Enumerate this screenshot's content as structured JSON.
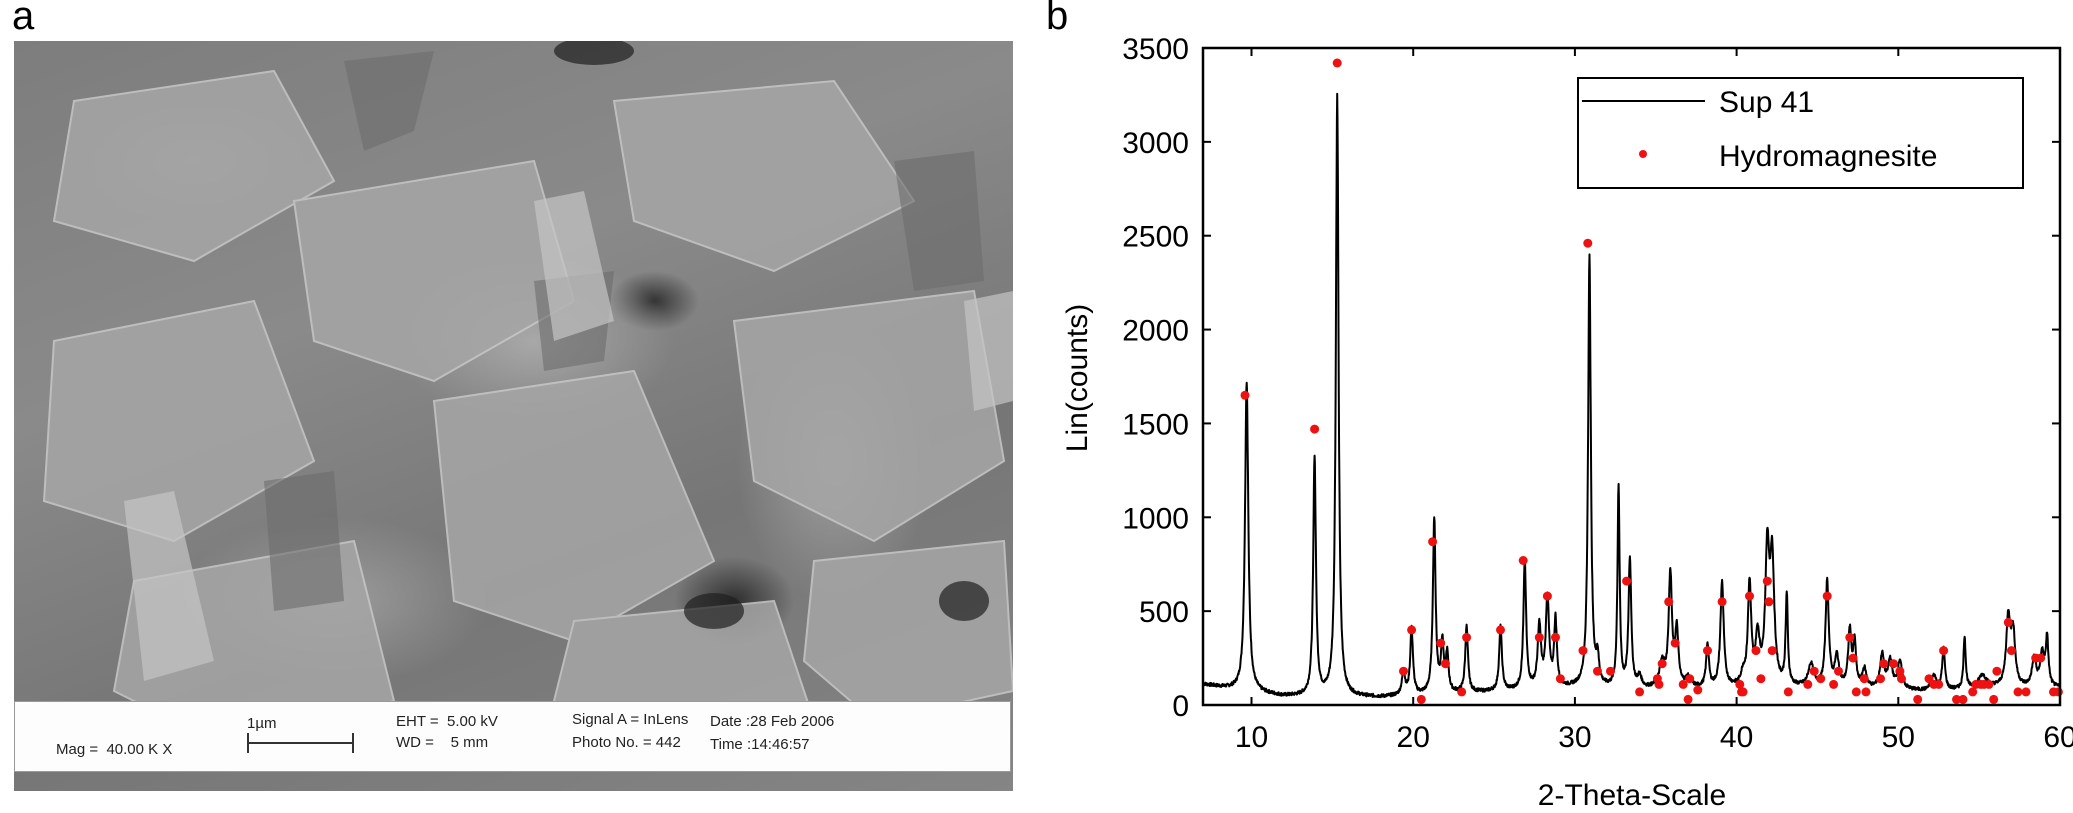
{
  "panels": {
    "a": {
      "label": "a"
    },
    "b": {
      "label": "b"
    }
  },
  "sem_info": {
    "mag": "Mag =  40.00 K X",
    "scale_label": "1µm",
    "eht": "EHT =  5.00 kV",
    "wd": "WD =    5 mm",
    "signal": "Signal A = InLens",
    "photo": "Photo No. = 442",
    "date": "Date :28 Feb 2006",
    "time": "Time :14:46:57"
  },
  "chart_data": {
    "type": "line",
    "title": "",
    "xlabel": "2-Theta-Scale",
    "ylabel": "Lin(counts)",
    "xlim": [
      7,
      60
    ],
    "ylim": [
      0,
      3500
    ],
    "xticks": [
      10,
      20,
      30,
      40,
      50,
      60
    ],
    "yticks": [
      0,
      500,
      1000,
      1500,
      2000,
      2500,
      3000,
      3500
    ],
    "grid": false,
    "legend_position": "upper right",
    "colors": {
      "line": "#000000",
      "markers": "#ee1111"
    },
    "series": [
      {
        "name": "Sup 41",
        "type": "line",
        "baseline": [
          [
            7,
            110
          ],
          [
            9,
            80
          ],
          [
            12,
            45
          ],
          [
            18,
            40
          ],
          [
            19,
            45
          ],
          [
            25,
            70
          ],
          [
            30,
            90
          ],
          [
            34,
            80
          ],
          [
            40,
            90
          ],
          [
            44,
            90
          ],
          [
            50,
            80
          ],
          [
            52,
            70
          ],
          [
            56,
            90
          ],
          [
            60,
            90
          ]
        ],
        "peaks": [
          {
            "x": 9.7,
            "y": 1650,
            "w": 0.12
          },
          {
            "x": 13.9,
            "y": 1270,
            "w": 0.1
          },
          {
            "x": 15.3,
            "y": 3200,
            "w": 0.1
          },
          {
            "x": 19.4,
            "y": 120,
            "w": 0.12
          },
          {
            "x": 19.9,
            "y": 350,
            "w": 0.1
          },
          {
            "x": 21.3,
            "y": 930,
            "w": 0.1
          },
          {
            "x": 21.8,
            "y": 260,
            "w": 0.1
          },
          {
            "x": 22.1,
            "y": 200,
            "w": 0.1
          },
          {
            "x": 23.3,
            "y": 350,
            "w": 0.1
          },
          {
            "x": 25.4,
            "y": 340,
            "w": 0.1
          },
          {
            "x": 26.9,
            "y": 680,
            "w": 0.1
          },
          {
            "x": 27.8,
            "y": 330,
            "w": 0.12
          },
          {
            "x": 28.3,
            "y": 480,
            "w": 0.12
          },
          {
            "x": 28.8,
            "y": 360,
            "w": 0.1
          },
          {
            "x": 30.9,
            "y": 2300,
            "w": 0.1
          },
          {
            "x": 31.4,
            "y": 140,
            "w": 0.1
          },
          {
            "x": 32.7,
            "y": 1060,
            "w": 0.08
          },
          {
            "x": 33.4,
            "y": 690,
            "w": 0.1
          },
          {
            "x": 34.0,
            "y": 60,
            "w": 0.15
          },
          {
            "x": 35.4,
            "y": 130,
            "w": 0.2
          },
          {
            "x": 35.9,
            "y": 600,
            "w": 0.12
          },
          {
            "x": 36.3,
            "y": 300,
            "w": 0.12
          },
          {
            "x": 37.0,
            "y": 50,
            "w": 0.2
          },
          {
            "x": 38.2,
            "y": 230,
            "w": 0.1
          },
          {
            "x": 39.1,
            "y": 560,
            "w": 0.12
          },
          {
            "x": 40.4,
            "y": 60,
            "w": 0.15
          },
          {
            "x": 40.8,
            "y": 540,
            "w": 0.12
          },
          {
            "x": 41.3,
            "y": 250,
            "w": 0.15
          },
          {
            "x": 41.9,
            "y": 700,
            "w": 0.15
          },
          {
            "x": 42.2,
            "y": 640,
            "w": 0.15
          },
          {
            "x": 43.1,
            "y": 480,
            "w": 0.08
          },
          {
            "x": 44.6,
            "y": 120,
            "w": 0.2
          },
          {
            "x": 45.6,
            "y": 560,
            "w": 0.12
          },
          {
            "x": 46.2,
            "y": 160,
            "w": 0.15
          },
          {
            "x": 47.0,
            "y": 300,
            "w": 0.12
          },
          {
            "x": 47.3,
            "y": 230,
            "w": 0.1
          },
          {
            "x": 47.9,
            "y": 100,
            "w": 0.15
          },
          {
            "x": 49.0,
            "y": 180,
            "w": 0.15
          },
          {
            "x": 49.5,
            "y": 150,
            "w": 0.15
          },
          {
            "x": 50.1,
            "y": 150,
            "w": 0.15
          },
          {
            "x": 52.2,
            "y": 80,
            "w": 0.2
          },
          {
            "x": 52.8,
            "y": 220,
            "w": 0.1
          },
          {
            "x": 54.1,
            "y": 280,
            "w": 0.08
          },
          {
            "x": 55.2,
            "y": 70,
            "w": 0.3
          },
          {
            "x": 56.8,
            "y": 360,
            "w": 0.15
          },
          {
            "x": 57.1,
            "y": 280,
            "w": 0.15
          },
          {
            "x": 58.4,
            "y": 150,
            "w": 0.15
          },
          {
            "x": 58.9,
            "y": 170,
            "w": 0.15
          },
          {
            "x": 59.2,
            "y": 250,
            "w": 0.1
          }
        ],
        "notable_peaks": [
          {
            "x": 9.7,
            "y": 1650
          },
          {
            "x": 13.9,
            "y": 1270
          },
          {
            "x": 15.3,
            "y": 3200
          },
          {
            "x": 21.3,
            "y": 930
          },
          {
            "x": 26.9,
            "y": 680
          },
          {
            "x": 30.9,
            "y": 2300
          },
          {
            "x": 32.7,
            "y": 1060
          },
          {
            "x": 33.4,
            "y": 690
          },
          {
            "x": 35.9,
            "y": 650
          },
          {
            "x": 39.1,
            "y": 570
          },
          {
            "x": 42.0,
            "y": 830
          },
          {
            "x": 43.1,
            "y": 510
          },
          {
            "x": 45.6,
            "y": 590
          },
          {
            "x": 56.9,
            "y": 460
          }
        ]
      },
      {
        "name": "Hydromagnesite",
        "type": "scatter",
        "points": [
          [
            9.6,
            1650
          ],
          [
            13.9,
            1470
          ],
          [
            15.3,
            3420
          ],
          [
            19.4,
            180
          ],
          [
            19.9,
            400
          ],
          [
            20.5,
            30
          ],
          [
            21.2,
            870
          ],
          [
            21.7,
            330
          ],
          [
            22.0,
            220
          ],
          [
            23.0,
            70
          ],
          [
            23.3,
            360
          ],
          [
            25.4,
            400
          ],
          [
            26.8,
            770
          ],
          [
            27.8,
            360
          ],
          [
            28.3,
            580
          ],
          [
            28.8,
            360
          ],
          [
            29.1,
            140
          ],
          [
            30.5,
            290
          ],
          [
            30.8,
            2460
          ],
          [
            31.4,
            180
          ],
          [
            32.2,
            180
          ],
          [
            33.2,
            660
          ],
          [
            34.0,
            70
          ],
          [
            35.1,
            140
          ],
          [
            35.2,
            110
          ],
          [
            35.4,
            220
          ],
          [
            35.8,
            550
          ],
          [
            36.2,
            330
          ],
          [
            36.7,
            110
          ],
          [
            37.0,
            30
          ],
          [
            37.1,
            140
          ],
          [
            37.6,
            80
          ],
          [
            38.2,
            290
          ],
          [
            39.1,
            550
          ],
          [
            40.2,
            110
          ],
          [
            40.3,
            70
          ],
          [
            40.4,
            70
          ],
          [
            40.8,
            580
          ],
          [
            41.2,
            290
          ],
          [
            41.5,
            140
          ],
          [
            41.9,
            660
          ],
          [
            42.0,
            550
          ],
          [
            42.2,
            290
          ],
          [
            43.2,
            70
          ],
          [
            44.4,
            110
          ],
          [
            44.8,
            180
          ],
          [
            45.2,
            140
          ],
          [
            45.6,
            580
          ],
          [
            46.0,
            110
          ],
          [
            46.3,
            180
          ],
          [
            47.0,
            360
          ],
          [
            47.2,
            250
          ],
          [
            47.4,
            70
          ],
          [
            47.9,
            140
          ],
          [
            48.0,
            70
          ],
          [
            48.9,
            140
          ],
          [
            49.1,
            220
          ],
          [
            49.7,
            220
          ],
          [
            50.1,
            180
          ],
          [
            50.2,
            140
          ],
          [
            51.2,
            30
          ],
          [
            51.9,
            140
          ],
          [
            52.2,
            110
          ],
          [
            52.5,
            110
          ],
          [
            52.8,
            290
          ],
          [
            53.6,
            30
          ],
          [
            54.0,
            30
          ],
          [
            54.6,
            70
          ],
          [
            54.8,
            110
          ],
          [
            55.1,
            110
          ],
          [
            55.3,
            110
          ],
          [
            55.6,
            110
          ],
          [
            55.9,
            30
          ],
          [
            56.1,
            180
          ],
          [
            56.8,
            440
          ],
          [
            57.0,
            290
          ],
          [
            57.4,
            70
          ],
          [
            57.9,
            70
          ],
          [
            58.5,
            250
          ],
          [
            58.8,
            250
          ],
          [
            59.6,
            70
          ],
          [
            59.9,
            70
          ]
        ]
      }
    ],
    "legend": [
      {
        "label": "Sup 41",
        "marker": "line"
      },
      {
        "label": "Hydromagnesite",
        "marker": "dot"
      }
    ]
  }
}
